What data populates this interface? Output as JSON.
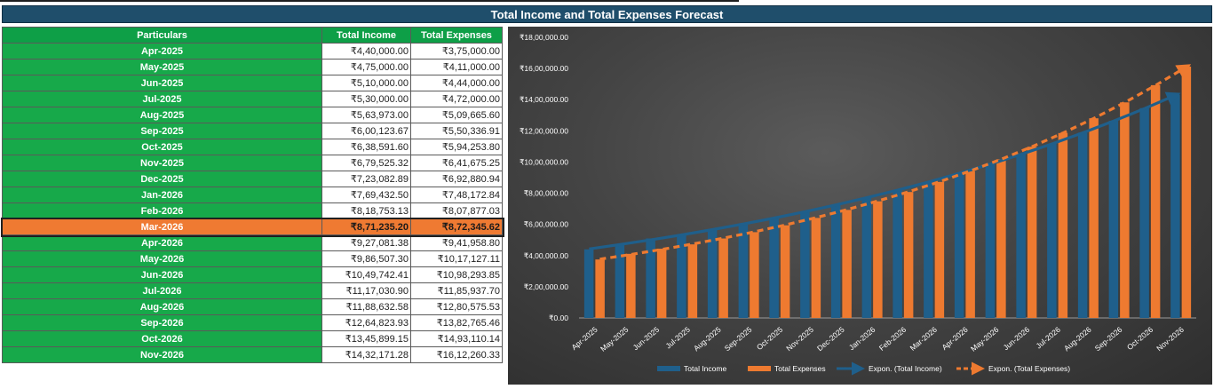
{
  "title": "Total Income and Total Expenses Forecast",
  "table": {
    "headers": [
      "Particulars",
      "Total Income",
      "Total Expenses"
    ],
    "rows": [
      {
        "period": "Apr-2025",
        "income": "₹4,40,000.00",
        "expenses": "₹3,75,000.00"
      },
      {
        "period": "May-2025",
        "income": "₹4,75,000.00",
        "expenses": "₹4,11,000.00"
      },
      {
        "period": "Jun-2025",
        "income": "₹5,10,000.00",
        "expenses": "₹4,44,000.00"
      },
      {
        "period": "Jul-2025",
        "income": "₹5,30,000.00",
        "expenses": "₹4,72,000.00"
      },
      {
        "period": "Aug-2025",
        "income": "₹5,63,973.00",
        "expenses": "₹5,09,665.60"
      },
      {
        "period": "Sep-2025",
        "income": "₹6,00,123.67",
        "expenses": "₹5,50,336.91"
      },
      {
        "period": "Oct-2025",
        "income": "₹6,38,591.60",
        "expenses": "₹5,94,253.80"
      },
      {
        "period": "Nov-2025",
        "income": "₹6,79,525.32",
        "expenses": "₹6,41,675.25"
      },
      {
        "period": "Dec-2025",
        "income": "₹7,23,082.89",
        "expenses": "₹6,92,880.94"
      },
      {
        "period": "Jan-2026",
        "income": "₹7,69,432.50",
        "expenses": "₹7,48,172.84"
      },
      {
        "period": "Feb-2026",
        "income": "₹8,18,753.13",
        "expenses": "₹8,07,877.03"
      },
      {
        "period": "Mar-2026",
        "income": "₹8,71,235.20",
        "expenses": "₹8,72,345.62",
        "highlight": true
      },
      {
        "period": "Apr-2026",
        "income": "₹9,27,081.38",
        "expenses": "₹9,41,958.80"
      },
      {
        "period": "May-2026",
        "income": "₹9,86,507.30",
        "expenses": "₹10,17,127.11"
      },
      {
        "period": "Jun-2026",
        "income": "₹10,49,742.41",
        "expenses": "₹10,98,293.85"
      },
      {
        "period": "Jul-2026",
        "income": "₹11,17,030.90",
        "expenses": "₹11,85,937.70"
      },
      {
        "period": "Aug-2026",
        "income": "₹11,88,632.58",
        "expenses": "₹12,80,575.53"
      },
      {
        "period": "Sep-2026",
        "income": "₹12,64,823.93",
        "expenses": "₹13,82,765.46"
      },
      {
        "period": "Oct-2026",
        "income": "₹13,45,899.15",
        "expenses": "₹14,93,110.14"
      },
      {
        "period": "Nov-2026",
        "income": "₹14,32,171.28",
        "expenses": "₹16,12,260.33"
      }
    ]
  },
  "colors": {
    "title_bg": "#1f4e6b",
    "period_bg": "#17a94a",
    "highlight_bg": "#ef7a32",
    "income": "#1f5f8b",
    "expenses": "#ee7a30"
  },
  "chart_data": {
    "type": "bar",
    "categories": [
      "Apr-2025",
      "May-2025",
      "Jun-2025",
      "Jul-2025",
      "Aug-2025",
      "Sep-2025",
      "Oct-2025",
      "Nov-2025",
      "Dec-2025",
      "Jan-2026",
      "Feb-2026",
      "Mar-2026",
      "Apr-2026",
      "May-2026",
      "Jun-2026",
      "Jul-2026",
      "Aug-2026",
      "Sep-2026",
      "Oct-2026",
      "Nov-2026"
    ],
    "series": [
      {
        "name": "Total Income",
        "values": [
          440000,
          475000,
          510000,
          530000,
          563973,
          600123.67,
          638591.6,
          679525.32,
          723082.89,
          769432.5,
          818753.13,
          871235.2,
          927081.38,
          986507.3,
          1049742.41,
          1117030.9,
          1188632.58,
          1264823.93,
          1345899.15,
          1432171.28
        ]
      },
      {
        "name": "Total Expenses",
        "values": [
          375000,
          411000,
          444000,
          472000,
          509665.6,
          550336.91,
          594253.8,
          641675.25,
          692880.94,
          748172.84,
          807877.03,
          872345.62,
          941958.8,
          1017127.11,
          1098293.85,
          1185937.7,
          1280575.53,
          1382765.46,
          1493110.14,
          1612260.33
        ]
      }
    ],
    "trendlines": [
      {
        "name": "Expon. (Total Income)",
        "series": "Total Income",
        "style": "solid-arrow"
      },
      {
        "name": "Expon. (Total Expenses)",
        "series": "Total Expenses",
        "style": "dashed-arrow"
      }
    ],
    "ylim": [
      0,
      1800000
    ],
    "yticks": [
      0,
      200000,
      400000,
      600000,
      800000,
      1000000,
      1200000,
      1400000,
      1600000,
      1800000
    ],
    "ytick_labels": [
      "₹0.00",
      "₹2,00,000.00",
      "₹4,00,000.00",
      "₹6,00,000.00",
      "₹8,00,000.00",
      "₹10,00,000.00",
      "₹12,00,000.00",
      "₹14,00,000.00",
      "₹16,00,000.00",
      "₹18,00,000.00"
    ],
    "legend": [
      "Total Income",
      "Total Expenses",
      "Expon. (Total Income)",
      "Expon. (Total Expenses)"
    ],
    "legend_position": "bottom",
    "grid": false
  }
}
